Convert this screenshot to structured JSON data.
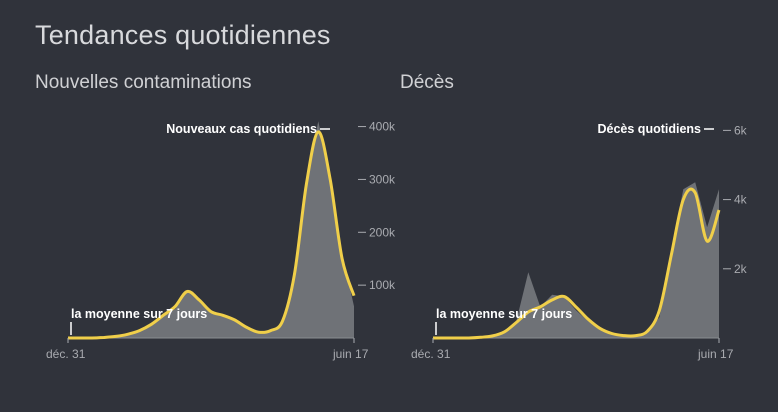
{
  "page_title": "Tendances quotidiennes",
  "colors": {
    "background": "#30333b",
    "area": "#6f7277",
    "spike": "#8e9196",
    "average_line": "#f0cf4a",
    "text": "#d0d1d4",
    "ticks": "#a9abb0"
  },
  "chart_data": [
    {
      "type": "area",
      "title": "Nouvelles contaminations",
      "x_start_label": "déc. 31",
      "x_end_label": "juin 17",
      "ylim": [
        0,
        420000
      ],
      "y_ticks": [
        100000,
        200000,
        300000,
        400000
      ],
      "y_tick_labels": [
        "100k",
        "200k",
        "300k",
        "400k"
      ],
      "annotation_series": "Nouveaux cas quotidiens",
      "annotation_average": "la moyenne sur 7 jours",
      "points": 25,
      "daily_cases": [
        0,
        0,
        0,
        1000,
        3000,
        8000,
        15000,
        28000,
        47000,
        55000,
        90000,
        70000,
        48000,
        43000,
        35000,
        20000,
        10000,
        13000,
        30000,
        120000,
        300000,
        410000,
        300000,
        160000,
        60000
      ],
      "moving_average": [
        0,
        0,
        0,
        1000,
        3000,
        7000,
        14000,
        26000,
        43000,
        60000,
        88000,
        72000,
        50000,
        43000,
        34000,
        20000,
        11000,
        14000,
        32000,
        120000,
        290000,
        390000,
        300000,
        150000,
        80000
      ]
    },
    {
      "type": "area",
      "title": "Décès",
      "x_start_label": "déc. 31",
      "x_end_label": "juin 17",
      "ylim": [
        0,
        6300
      ],
      "y_ticks": [
        2000,
        4000,
        6000
      ],
      "y_tick_labels": [
        "2k",
        "4k",
        "6k"
      ],
      "annotation_series": "Décès quotidiens",
      "annotation_average": "la moyenne sur 7 jours",
      "points": 25,
      "daily_deaths": [
        0,
        0,
        0,
        0,
        20,
        60,
        200,
        500,
        1900,
        900,
        1250,
        1200,
        800,
        500,
        260,
        120,
        60,
        60,
        180,
        600,
        2500,
        4300,
        4500,
        3200,
        4300
      ],
      "moving_average": [
        0,
        0,
        0,
        0,
        20,
        60,
        180,
        450,
        750,
        900,
        1100,
        1200,
        900,
        550,
        280,
        130,
        70,
        70,
        200,
        800,
        2400,
        4000,
        4200,
        2800,
        3700
      ]
    }
  ]
}
